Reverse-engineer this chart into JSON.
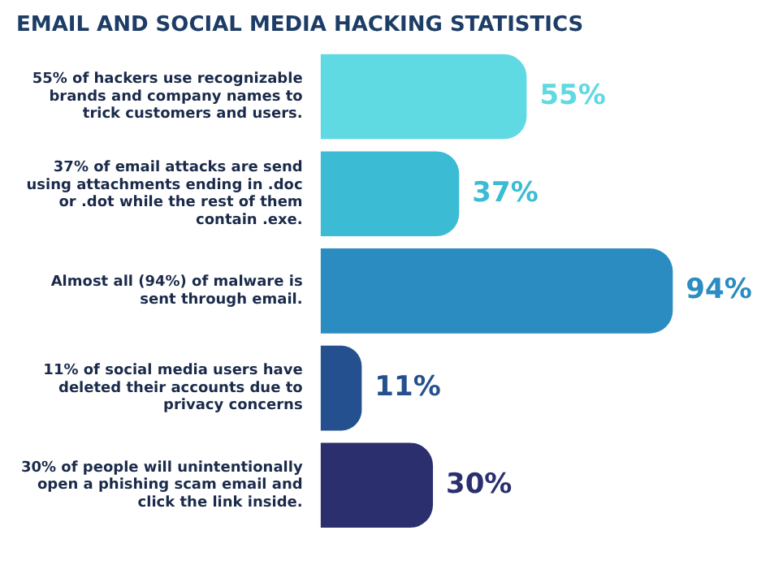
{
  "chart_data": {
    "type": "bar",
    "orientation": "horizontal",
    "title": "EMAIL AND SOCIAL MEDIA HACKING STATISTICS",
    "categories": [
      "55% of hackers use recognizable brands and company names to trick customers and users.",
      "37% of email attacks are send using attachments ending in .doc or .dot while the rest of them contain .exe.",
      "Almost all (94%) of malware is sent through email.",
      "11% of social media users have deleted their accounts due to privacy concerns",
      "30% of people will unintentionally open a phishing scam email and click the link inside."
    ],
    "values": [
      55,
      37,
      94,
      11,
      30
    ],
    "colors": [
      "#5fd9e2",
      "#3cbcd4",
      "#2a8cc0",
      "#24508f",
      "#2b2f6e"
    ],
    "value_labels": [
      "55%",
      "37%",
      "94%",
      "11%",
      "30%"
    ],
    "legend": false
  }
}
